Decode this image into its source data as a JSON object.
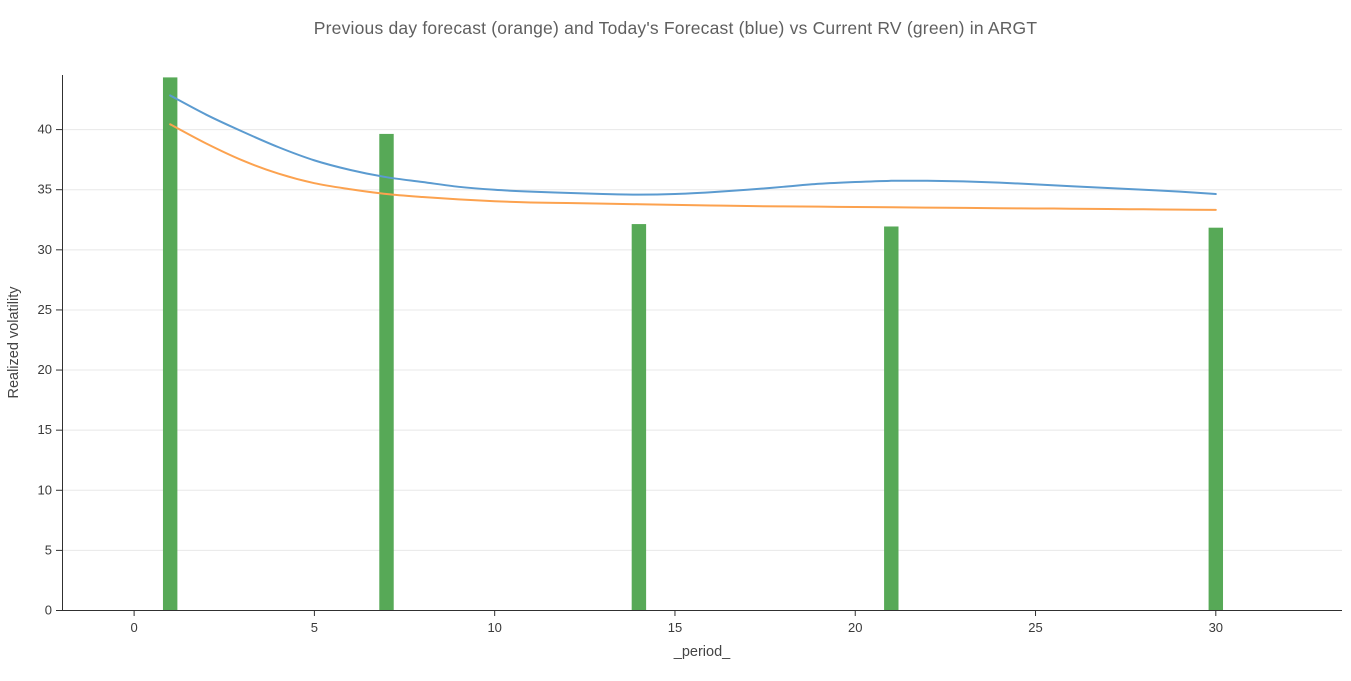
{
  "chart_data": {
    "type": "bar+line",
    "title": "Previous day forecast (orange) and Today's Forecast (blue) vs Current RV (green) in ARGT",
    "xlabel": "_period_",
    "ylabel": "Realized volatility",
    "xlim": [
      -2,
      33.5
    ],
    "ylim": [
      0,
      44.5
    ],
    "x_ticks": [
      0,
      5,
      10,
      15,
      20,
      25,
      30
    ],
    "y_ticks": [
      0,
      5,
      10,
      15,
      20,
      25,
      30,
      35,
      40
    ],
    "grid": "horizontal-light",
    "grid_color": "#e8e8e8",
    "axis_color": "#303030",
    "tick_label_color": "#3a3a3a",
    "axis_label_color": "#444444",
    "bars": {
      "name": "Current RV",
      "color": "#57a957",
      "bar_width": 0.4,
      "x": [
        1,
        7,
        14,
        21,
        30
      ],
      "values": [
        44.3,
        39.6,
        32.1,
        31.9,
        31.8
      ]
    },
    "series": [
      {
        "name": "Today's Forecast",
        "color": "#5b9bd0",
        "x": [
          1,
          2,
          3,
          4,
          5,
          6,
          7,
          8,
          9,
          10,
          11,
          12,
          13,
          14,
          15,
          16,
          17,
          18,
          19,
          20,
          21,
          22,
          23,
          24,
          25,
          26,
          27,
          28,
          29,
          30
        ],
        "values": [
          42.8,
          41.2,
          39.8,
          38.5,
          37.4,
          36.6,
          36.0,
          35.6,
          35.2,
          34.95,
          34.8,
          34.7,
          34.6,
          34.55,
          34.6,
          34.75,
          34.95,
          35.2,
          35.45,
          35.6,
          35.7,
          35.7,
          35.65,
          35.55,
          35.4,
          35.25,
          35.1,
          34.95,
          34.8,
          34.6
        ]
      },
      {
        "name": "Previous day forecast",
        "color": "#fca24f",
        "x": [
          1,
          2,
          3,
          4,
          5,
          6,
          7,
          8,
          9,
          10,
          11,
          12,
          13,
          14,
          15,
          16,
          17,
          18,
          19,
          20,
          21,
          22,
          23,
          24,
          25,
          26,
          27,
          28,
          29,
          30
        ],
        "values": [
          40.4,
          38.8,
          37.4,
          36.3,
          35.5,
          35.0,
          34.6,
          34.35,
          34.15,
          34.0,
          33.9,
          33.85,
          33.8,
          33.75,
          33.7,
          33.65,
          33.6,
          33.57,
          33.55,
          33.52,
          33.5,
          33.47,
          33.45,
          33.42,
          33.4,
          33.38,
          33.35,
          33.33,
          33.3,
          33.28
        ]
      }
    ]
  }
}
